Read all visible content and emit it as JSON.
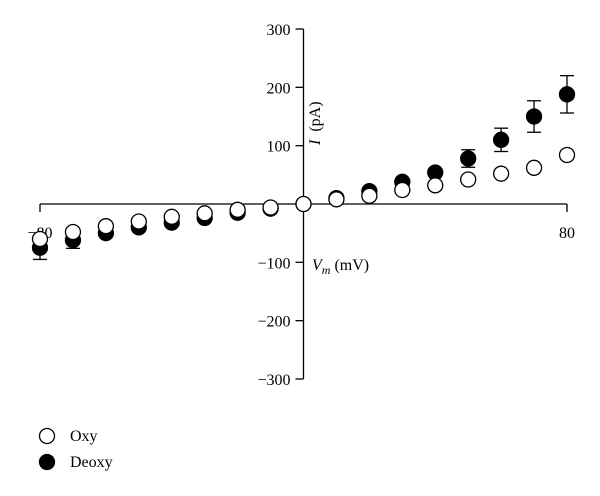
{
  "chart_data": {
    "type": "scatter",
    "title": "",
    "x": [
      -80,
      -70,
      -60,
      -50,
      -40,
      -30,
      -20,
      -10,
      0,
      10,
      20,
      30,
      40,
      50,
      60,
      70,
      80
    ],
    "xlabel": {
      "symbol": "V",
      "subscript": "m",
      "unit": "(mV)"
    },
    "ylabel": {
      "symbol": "I",
      "unit": "(pA)"
    },
    "xlim": [
      -80,
      80
    ],
    "ylim": [
      -300,
      300
    ],
    "x_ticks": [
      "−80",
      "80"
    ],
    "y_ticks": [
      "300",
      "200",
      "100",
      "−100",
      "−200",
      "−300"
    ],
    "grid": false,
    "legend_position": "bottom-left",
    "series": [
      {
        "name": "Oxy",
        "marker": "open-circle",
        "color": "#000000",
        "values": [
          -60,
          -48,
          -38,
          -30,
          -22,
          -16,
          -10,
          -6,
          0,
          8,
          14,
          24,
          32,
          42,
          52,
          62,
          84
        ]
      },
      {
        "name": "Deoxy",
        "marker": "filled-circle",
        "color": "#000000",
        "values": [
          -75,
          -62,
          -50,
          -40,
          -32,
          -24,
          -15,
          -8,
          0,
          10,
          22,
          38,
          54,
          78,
          110,
          150,
          188
        ],
        "error": [
          20,
          14,
          0,
          0,
          0,
          0,
          0,
          0,
          0,
          0,
          0,
          0,
          0,
          15,
          20,
          27,
          32
        ]
      }
    ]
  }
}
